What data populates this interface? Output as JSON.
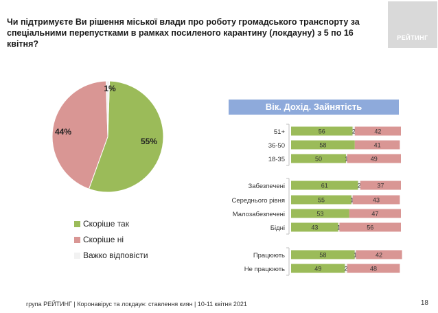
{
  "header": {
    "title": "Чи підтримуєте Ви рішення міської влади про роботу громадського транспорту за спеціальними перепустками в рамках посиленого карантину (локдауну) з 5 по 16 квітня?",
    "logo_text": "РЕЙТИНГ"
  },
  "panel": {
    "title": "Вік. Дохід. Зайнятість"
  },
  "footer": {
    "source": "група РЕЙТИНГ  | Коронавірус та локдаун: ставлення киян  | 10-11 квітня 2021",
    "page_number": "18"
  },
  "colors": {
    "support": "#9bbb59",
    "oppose": "#d99694",
    "undecided": "#f2f2f2"
  },
  "chart_data": [
    {
      "type": "pie",
      "labels": [
        "Скоріше так",
        "Скоріше ні",
        "Важко відповісти"
      ],
      "values": [
        55,
        44,
        1
      ],
      "value_labels": [
        "55%",
        "44%",
        "1%"
      ],
      "legend": "bottom-left"
    },
    {
      "type": "bar",
      "stacked": true,
      "orientation": "horizontal",
      "categories": [
        "51+",
        "36-50",
        "18-35",
        "Забезпечені",
        "Середнього рівня",
        "Малозабезпечені",
        "Бідні",
        "Працюють",
        "Не працюють"
      ],
      "groups": [
        [
          "51+",
          "36-50",
          "18-35"
        ],
        [
          "Забезпечені",
          "Середнього рівня",
          "Малозабезпечені",
          "Бідні"
        ],
        [
          "Працюють",
          "Не працюють"
        ]
      ],
      "series": [
        {
          "name": "Скоріше так",
          "values": [
            56,
            58,
            50,
            61,
            55,
            53,
            43,
            58,
            49
          ]
        },
        {
          "name": "Важко відповісти",
          "values": [
            2,
            0,
            1,
            2,
            1,
            0,
            1,
            1,
            2
          ]
        },
        {
          "name": "Скоріше ні",
          "values": [
            42,
            41,
            49,
            37,
            43,
            47,
            56,
            42,
            48
          ]
        }
      ],
      "xlim": [
        0,
        100
      ]
    }
  ]
}
